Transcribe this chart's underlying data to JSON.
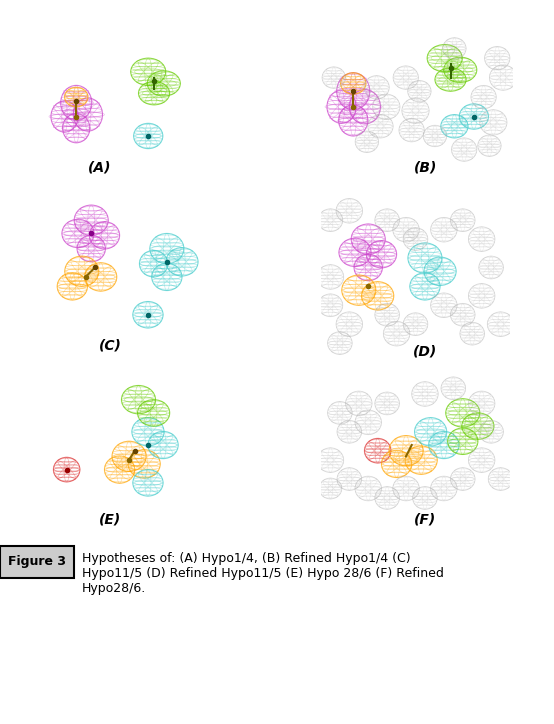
{
  "title": "Figure 3",
  "caption": "Hypotheses of: (A) Hypo1/4, (B) Refined Hypo1/4 (C) Hypo11/5 (D) Refined Hypo11/5 (E) Hypo 28/6 (F) Refined Hypo28/6.",
  "background_color": "#ffffff",
  "label_box_color": "#cccccc",
  "panel_labels": [
    "(A)",
    "(B)",
    "(C)",
    "(D)",
    "(E)",
    "(F)"
  ],
  "colors": {
    "magenta": "#CC44CC",
    "orange": "#FFA500",
    "green": "#66CC00",
    "cyan": "#44CCCC",
    "red": "#DD3333",
    "gray": "#AAAAAA"
  }
}
